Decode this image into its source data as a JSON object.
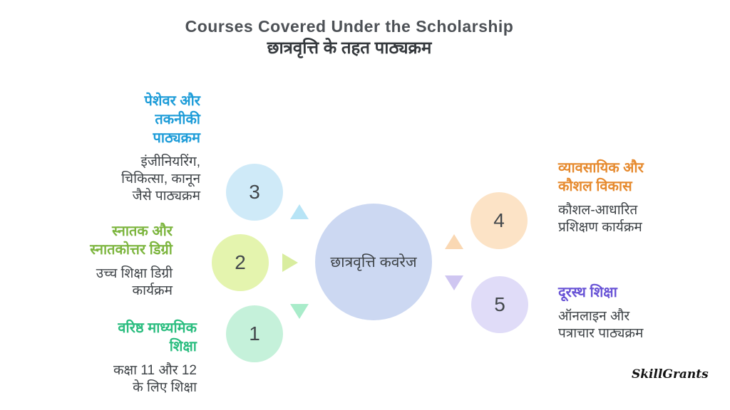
{
  "header": {
    "title_en": "Courses Covered Under the Scholarship",
    "title_hi": "छात्रवृत्ति के तहत पाठ्यक्रम"
  },
  "center": {
    "label": "छात्रवृत्ति कवरेज",
    "fill": "#ccd8f2",
    "text_color": "#3d4246"
  },
  "items": [
    {
      "number": "1",
      "heading_lines": [
        "वरिष्ठ माध्यमिक",
        "शिक्षा"
      ],
      "body_lines": [
        "कक्षा 11 और 12",
        "के लिए शिक्षा"
      ],
      "heading_color": "#2abd7f",
      "circle_fill": "#c5f1da",
      "arrow_fill": "#a9ecca",
      "arrow_direction": "down"
    },
    {
      "number": "2",
      "heading_lines": [
        "स्नातक और",
        "स्नातकोत्तर डिग्री"
      ],
      "body_lines": [
        "उच्च शिक्षा डिग्री",
        "कार्यक्रम"
      ],
      "heading_color": "#7cb53e",
      "circle_fill": "#e4f4ae",
      "arrow_fill": "#d9ed9f",
      "arrow_direction": "right"
    },
    {
      "number": "3",
      "heading_lines": [
        "पेशेवर और",
        "तकनीकी",
        "पाठ्यक्रम"
      ],
      "body_lines": [
        "इंजीनियरिंग,",
        "चिकित्सा, कानून",
        "जैसे पाठ्यक्रम"
      ],
      "heading_color": "#1d9cd8",
      "circle_fill": "#cfeaf8",
      "arrow_fill": "#b7e4f6",
      "arrow_direction": "up"
    },
    {
      "number": "4",
      "heading_lines": [
        "व्यावसायिक और",
        "कौशल विकास"
      ],
      "body_lines": [
        "कौशल-आधारित",
        "प्रशिक्षण कार्यक्रम"
      ],
      "heading_color": "#e68a2e",
      "circle_fill": "#fce3c6",
      "arrow_fill": "#fad8b3",
      "arrow_direction": "up"
    },
    {
      "number": "5",
      "heading_lines": [
        "दूरस्थ शिक्षा"
      ],
      "body_lines": [
        "ऑनलाइन और",
        "पत्राचार पाठ्यक्रम"
      ],
      "heading_color": "#6853d6",
      "circle_fill": "#e0dcf8",
      "arrow_fill": "#cfc6f1",
      "arrow_direction": "down"
    }
  ],
  "watermark": "SkillGrants"
}
